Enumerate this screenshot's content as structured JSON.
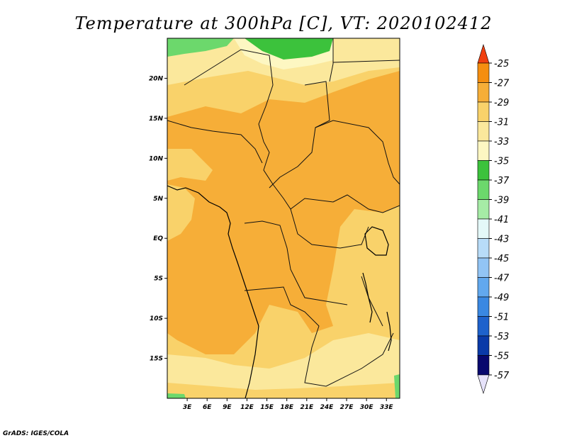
{
  "title": "Temperature at 300hPa [C], VT: 2020102412",
  "credit": "GrADS: IGES/COLA",
  "map": {
    "lon_range": [
      0,
      35
    ],
    "lat_range": [
      -20,
      25
    ],
    "lat_ticks": [
      {
        "value": 20,
        "label": "20N"
      },
      {
        "value": 15,
        "label": "15N"
      },
      {
        "value": 10,
        "label": "10N"
      },
      {
        "value": 5,
        "label": "5N"
      },
      {
        "value": 0,
        "label": "EQ"
      },
      {
        "value": -5,
        "label": "5S"
      },
      {
        "value": -10,
        "label": "10S"
      },
      {
        "value": -15,
        "label": "15S"
      }
    ],
    "lon_ticks": [
      {
        "value": 3,
        "label": "3E"
      },
      {
        "value": 6,
        "label": "6E"
      },
      {
        "value": 9,
        "label": "9E"
      },
      {
        "value": 12,
        "label": "12E"
      },
      {
        "value": 15,
        "label": "15E"
      },
      {
        "value": 18,
        "label": "18E"
      },
      {
        "value": 21,
        "label": "21E"
      },
      {
        "value": 24,
        "label": "24E"
      },
      {
        "value": 27,
        "label": "27E"
      },
      {
        "value": 30,
        "label": "30E"
      },
      {
        "value": 33,
        "label": "33E"
      }
    ]
  },
  "colorbar": {
    "levels": [
      {
        "label": "-25",
        "color": "#f05a10"
      },
      {
        "label": "-27",
        "color": "#f58e10"
      },
      {
        "label": "-29",
        "color": "#f6ae38"
      },
      {
        "label": "-31",
        "color": "#f9d26a"
      },
      {
        "label": "-33",
        "color": "#fbe89c"
      },
      {
        "label": "-35",
        "color": "#fdf7c2"
      },
      {
        "label": "-37",
        "color": "#3cc23c"
      },
      {
        "label": "-39",
        "color": "#6cd86c"
      },
      {
        "label": "-41",
        "color": "#a6eca6"
      },
      {
        "label": "-43",
        "color": "#e4f8f8"
      },
      {
        "label": "-45",
        "color": "#b8dcf8"
      },
      {
        "label": "-47",
        "color": "#92c4f4"
      },
      {
        "label": "-49",
        "color": "#62a8ee"
      },
      {
        "label": "-51",
        "color": "#3a88e2"
      },
      {
        "label": "-53",
        "color": "#1e62cc"
      },
      {
        "label": "-55",
        "color": "#0a3aa8"
      },
      {
        "label": "-57",
        "color": "#08086e"
      }
    ],
    "top_color": "#f04010",
    "bottom_color": "#e6e2fa"
  }
}
